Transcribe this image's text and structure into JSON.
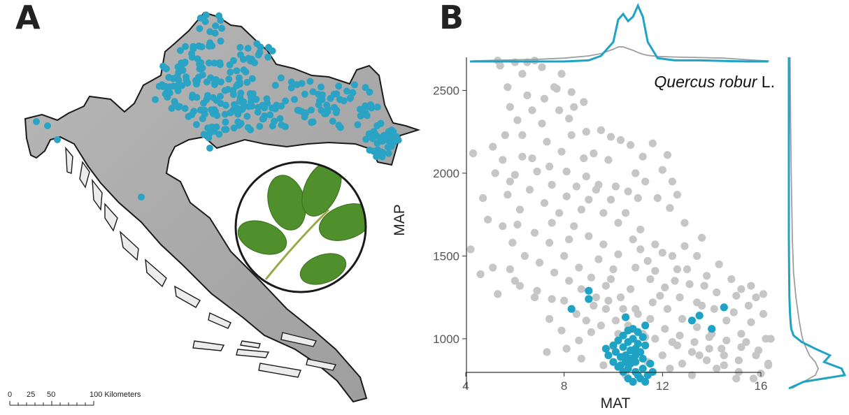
{
  "panels": {
    "a_label": "A",
    "b_label": "B"
  },
  "map": {
    "scale_bar": {
      "ticks": [
        "0",
        "25",
        "50",
        "100 Kilometers"
      ]
    },
    "occurrence_color": "#2aa3c4",
    "land_color": "#a8a8a8",
    "inset_icon": "oak-leaf-photo"
  },
  "colors": {
    "focal": "#1fa3c4",
    "background": "#c6c6c6"
  },
  "chart_data": {
    "type": "scatter",
    "title": "",
    "species_genus_epithet": "Quercus robur",
    "species_author": " L.",
    "xlabel": "MAT",
    "ylabel": "MAP",
    "xlim": [
      4,
      16
    ],
    "ylim": [
      700,
      2700
    ],
    "x_ticks": [
      4,
      8,
      12,
      16
    ],
    "y_ticks": [
      1000,
      1500,
      2000,
      2500
    ],
    "marginals": [
      "top-density-MAT",
      "right-density-MAP"
    ],
    "series": [
      {
        "name": "background",
        "color": "#c6c6c6",
        "points": [
          [
            5.3,
            2680
          ],
          [
            5.4,
            2650
          ],
          [
            6,
            2670
          ],
          [
            6.5,
            2670
          ],
          [
            6.8,
            2680
          ],
          [
            7.1,
            2640
          ],
          [
            7.9,
            2600
          ],
          [
            7.7,
            2510
          ],
          [
            8.3,
            2490
          ],
          [
            8.8,
            2430
          ],
          [
            5.7,
            2520
          ],
          [
            6.5,
            2470
          ],
          [
            7.2,
            2450
          ],
          [
            7.8,
            2380
          ],
          [
            7.1,
            2300
          ],
          [
            8.2,
            2330
          ],
          [
            8.9,
            2250
          ],
          [
            9.5,
            2260
          ],
          [
            10.3,
            2200
          ],
          [
            10.7,
            2170
          ],
          [
            11.6,
            2180
          ],
          [
            11.2,
            2100
          ],
          [
            12.2,
            2110
          ],
          [
            12.4,
            1950
          ],
          [
            4.3,
            2120
          ],
          [
            4.7,
            1850
          ],
          [
            5.2,
            2000
          ],
          [
            5.8,
            1950
          ],
          [
            6.3,
            2230
          ],
          [
            6.7,
            2090
          ],
          [
            7.4,
            2040
          ],
          [
            8.1,
            2010
          ],
          [
            8.9,
            1980
          ],
          [
            9.4,
            1930
          ],
          [
            10.1,
            1920
          ],
          [
            10.6,
            1890
          ],
          [
            11,
            1850
          ],
          [
            11.8,
            1850
          ],
          [
            12.3,
            1790
          ],
          [
            13.6,
            1610
          ],
          [
            4.2,
            1540
          ],
          [
            4.6,
            1390
          ],
          [
            5.1,
            1430
          ],
          [
            5.8,
            1420
          ],
          [
            6.2,
            1320
          ],
          [
            6.9,
            1290
          ],
          [
            7.5,
            1240
          ],
          [
            8,
            1230
          ],
          [
            8.5,
            1150
          ],
          [
            9.2,
            1200
          ],
          [
            9.7,
            1180
          ],
          [
            10.1,
            1110
          ],
          [
            10.6,
            1080
          ],
          [
            11.2,
            1030
          ],
          [
            11.7,
            1000
          ],
          [
            12.4,
            980
          ],
          [
            13.2,
            920
          ],
          [
            13.8,
            870
          ],
          [
            14.5,
            840
          ],
          [
            15.1,
            800
          ],
          [
            15.7,
            760
          ],
          [
            16,
            790
          ],
          [
            16.3,
            840
          ],
          [
            15.9,
            930
          ],
          [
            15.2,
            1030
          ],
          [
            14.6,
            1110
          ],
          [
            14.1,
            1180
          ],
          [
            13.4,
            1220
          ],
          [
            12.7,
            1250
          ],
          [
            12.1,
            1310
          ],
          [
            11.5,
            1360
          ],
          [
            10.9,
            1430
          ],
          [
            10.2,
            1510
          ],
          [
            9.6,
            1570
          ],
          [
            9,
            1620
          ],
          [
            8.4,
            1680
          ],
          [
            7.8,
            1760
          ],
          [
            7.2,
            1820
          ],
          [
            6.6,
            1900
          ],
          [
            6,
            1990
          ],
          [
            5.5,
            2080
          ],
          [
            5.1,
            2160
          ],
          [
            6.8,
            1640
          ],
          [
            7.4,
            1580
          ],
          [
            8,
            1500
          ],
          [
            8.6,
            1430
          ],
          [
            9.1,
            1370
          ],
          [
            9.7,
            1320
          ],
          [
            10.3,
            1250
          ],
          [
            10.9,
            1180
          ],
          [
            11.5,
            1120
          ],
          [
            12.1,
            1060
          ],
          [
            12.7,
            1020
          ],
          [
            13.3,
            980
          ],
          [
            13.9,
            940
          ],
          [
            14.5,
            900
          ],
          [
            15.1,
            870
          ],
          [
            15.6,
            1100
          ],
          [
            15.8,
            1250
          ],
          [
            15.2,
            1300
          ],
          [
            14.2,
            1280
          ],
          [
            13.1,
            1330
          ],
          [
            12.6,
            1420
          ],
          [
            12,
            1520
          ],
          [
            11.4,
            1470
          ],
          [
            10.8,
            1600
          ],
          [
            10.2,
            1700
          ],
          [
            9.6,
            1760
          ],
          [
            9,
            1840
          ],
          [
            8.5,
            1920
          ],
          [
            7.9,
            2130
          ],
          [
            7.3,
            2190
          ],
          [
            6.7,
            2380
          ],
          [
            6.1,
            2320
          ],
          [
            5.6,
            2230
          ],
          [
            6.2,
            1780
          ],
          [
            5.5,
            1680
          ],
          [
            5.9,
            1580
          ],
          [
            6.4,
            1500
          ],
          [
            7,
            1460
          ],
          [
            7.6,
            1400
          ],
          [
            8.2,
            1350
          ],
          [
            8.7,
            1300
          ],
          [
            9.3,
            1250
          ],
          [
            9.8,
            1230
          ],
          [
            10.4,
            1180
          ],
          [
            11,
            1150
          ],
          [
            11.6,
            1220
          ],
          [
            12.2,
            1180
          ],
          [
            12.8,
            1120
          ],
          [
            13.4,
            1070
          ],
          [
            14,
            1030
          ],
          [
            14.6,
            990
          ],
          [
            15.2,
            950
          ],
          [
            15.8,
            900
          ],
          [
            16.2,
            1000
          ],
          [
            16.1,
            1150
          ],
          [
            15.5,
            1200
          ],
          [
            13.7,
            1320
          ],
          [
            13,
            1420
          ],
          [
            12.4,
            1500
          ],
          [
            11.7,
            1570
          ],
          [
            11.1,
            1660
          ],
          [
            10.5,
            1760
          ],
          [
            9.9,
            1840
          ],
          [
            9.3,
            1900
          ],
          [
            8.7,
            1780
          ],
          [
            8.1,
            1860
          ],
          [
            7.5,
            1930
          ],
          [
            6.9,
            2010
          ],
          [
            6.3,
            2100
          ],
          [
            8.3,
            2230
          ],
          [
            9.8,
            2080
          ],
          [
            11.3,
            1950
          ],
          [
            12.9,
            1700
          ],
          [
            14.3,
            1450
          ],
          [
            9.1,
            1040
          ],
          [
            8.6,
            990
          ],
          [
            8.1,
            940
          ],
          [
            10,
            950
          ],
          [
            12,
            900
          ],
          [
            11.4,
            860
          ],
          [
            12.8,
            850
          ],
          [
            7.3,
            920
          ],
          [
            6.8,
            1250
          ],
          [
            6,
            1350
          ],
          [
            5.3,
            1270
          ],
          [
            9.9,
            1360
          ],
          [
            10.7,
            1300
          ],
          [
            11.9,
            1260
          ],
          [
            13.6,
            1200
          ],
          [
            14.9,
            1160
          ],
          [
            15.4,
            980
          ],
          [
            14.2,
            820
          ],
          [
            13.2,
            780
          ],
          [
            12.3,
            820
          ],
          [
            10.5,
            780
          ],
          [
            9.6,
            840
          ],
          [
            8.7,
            880
          ],
          [
            7.9,
            1050
          ],
          [
            7.4,
            1120
          ],
          [
            11.7,
            1410
          ],
          [
            12.5,
            1350
          ],
          [
            13.8,
            1380
          ],
          [
            15,
            1260
          ],
          [
            16.1,
            1270
          ],
          [
            6.1,
            1690
          ],
          [
            5.7,
            1870
          ],
          [
            4.9,
            1720
          ],
          [
            7.5,
            1700
          ],
          [
            8.2,
            1600
          ],
          [
            9.4,
            1480
          ],
          [
            10,
            1420
          ],
          [
            11.1,
            1540
          ],
          [
            12.9,
            1560
          ],
          [
            8.8,
            2090
          ],
          [
            9.9,
            2220
          ],
          [
            10.9,
            2000
          ],
          [
            12,
            2020
          ],
          [
            7.6,
            2520
          ],
          [
            8.4,
            2400
          ],
          [
            9.2,
            2120
          ],
          [
            6.3,
            2600
          ],
          [
            5.8,
            2400
          ],
          [
            12.6,
            1870
          ],
          [
            13.4,
            1500
          ],
          [
            14.8,
            1360
          ],
          [
            15.6,
            1320
          ],
          [
            16.4,
            1000
          ],
          [
            16.3,
            850
          ],
          [
            15,
            760
          ],
          [
            10.2,
            1030
          ],
          [
            11.3,
            1010
          ],
          [
            12.6,
            960
          ],
          [
            13.9,
            1010
          ],
          [
            9.5,
            1080
          ],
          [
            8.9,
            1110
          ],
          [
            13.5,
            900
          ],
          [
            14.4,
            940
          ]
        ]
      },
      {
        "name": "focal",
        "color": "#1fa3c4",
        "points": [
          [
            8.3,
            1180
          ],
          [
            9,
            1290
          ],
          [
            9,
            1240
          ],
          [
            10.5,
            1130
          ],
          [
            11.3,
            1080
          ],
          [
            13.2,
            1110
          ],
          [
            13.5,
            1140
          ],
          [
            14,
            1060
          ],
          [
            14.5,
            1190
          ],
          [
            10,
            960
          ],
          [
            10.2,
            990
          ],
          [
            10.4,
            1020
          ],
          [
            10.6,
            1050
          ],
          [
            10.8,
            1060
          ],
          [
            11,
            1040
          ],
          [
            11.2,
            1010
          ],
          [
            11.3,
            960
          ],
          [
            11.1,
            920
          ],
          [
            10.9,
            900
          ],
          [
            10.7,
            880
          ],
          [
            10.5,
            860
          ],
          [
            10.3,
            890
          ],
          [
            10.1,
            920
          ],
          [
            10.4,
            950
          ],
          [
            10.6,
            980
          ],
          [
            10.8,
            1000
          ],
          [
            11,
            970
          ],
          [
            10.9,
            940
          ],
          [
            10.7,
            930
          ],
          [
            10.5,
            900
          ],
          [
            10.3,
            840
          ],
          [
            10.6,
            820
          ],
          [
            10.9,
            800
          ],
          [
            11.2,
            820
          ],
          [
            11.4,
            780
          ],
          [
            11.1,
            760
          ],
          [
            10.8,
            740
          ],
          [
            10.6,
            760
          ],
          [
            10.4,
            800
          ],
          [
            10.7,
            850
          ],
          [
            10.9,
            860
          ],
          [
            11.2,
            880
          ],
          [
            9.8,
            900
          ],
          [
            9.7,
            940
          ],
          [
            10,
            860
          ],
          [
            10.2,
            830
          ],
          [
            11.5,
            850
          ],
          [
            11.6,
            800
          ],
          [
            11.3,
            740
          ],
          [
            11,
            780
          ]
        ]
      }
    ],
    "density_top": {
      "x": [
        4.3,
        5,
        6,
        7,
        8,
        9,
        9.5,
        10,
        10.2,
        10.4,
        10.6,
        10.8,
        11,
        11.2,
        11.4,
        11.8,
        12.5,
        13.5,
        14.5,
        15.5,
        16.3
      ],
      "focal": [
        0,
        0,
        0,
        0,
        0,
        0.02,
        0.1,
        0.35,
        0.75,
        0.85,
        0.72,
        0.8,
        1,
        0.8,
        0.35,
        0.06,
        0.02,
        0.02,
        0.01,
        0,
        0
      ],
      "background": [
        0.01,
        0.02,
        0.03,
        0.04,
        0.06,
        0.1,
        0.14,
        0.22,
        0.26,
        0.26,
        0.23,
        0.2,
        0.16,
        0.13,
        0.11,
        0.09,
        0.08,
        0.07,
        0.06,
        0.03,
        0.01
      ]
    },
    "density_right": {
      "y": [
        700,
        740,
        780,
        820,
        860,
        900,
        940,
        980,
        1020,
        1060,
        1100,
        1150,
        1250,
        1400,
        1600,
        1800,
        2000,
        2300,
        2700
      ],
      "focal": [
        0,
        0.25,
        0.95,
        0.9,
        0.6,
        0.7,
        0.45,
        0.22,
        0.08,
        0.04,
        0.03,
        0.02,
        0.01,
        0.005,
        0,
        0,
        0,
        0,
        0
      ],
      "background": [
        0.05,
        0.25,
        0.45,
        0.5,
        0.45,
        0.35,
        0.3,
        0.25,
        0.22,
        0.2,
        0.18,
        0.16,
        0.12,
        0.08,
        0.06,
        0.05,
        0.04,
        0.03,
        0.02
      ]
    }
  }
}
